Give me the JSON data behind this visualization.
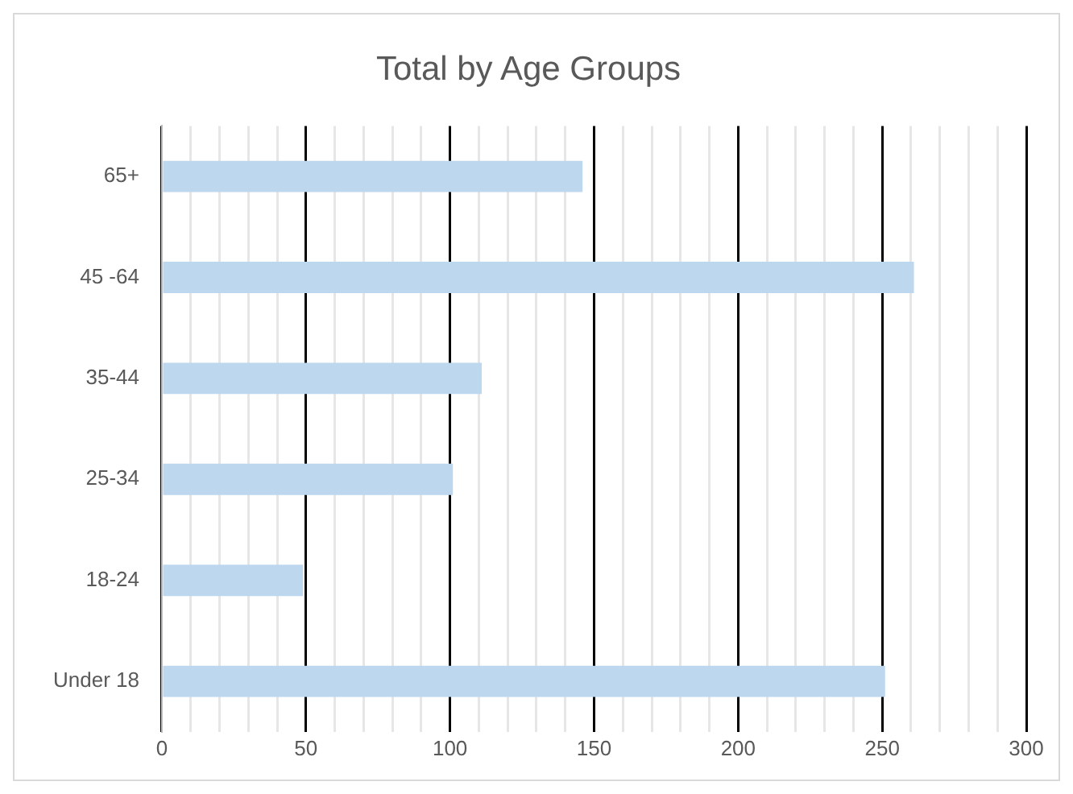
{
  "chart_data": {
    "type": "bar",
    "orientation": "horizontal",
    "title": "Total by Age Groups",
    "categories": [
      "65+",
      "45 -64",
      "35-44",
      "25-34",
      "18-24",
      "Under 18"
    ],
    "values": [
      146,
      261,
      111,
      101,
      49,
      251
    ],
    "color": "#bdd7ee",
    "xlim": [
      0,
      300
    ],
    "xticks": [
      0,
      {
        "value": 10,
        "label": null
      },
      {
        "value": 20,
        "label": null
      },
      {
        "value": 30,
        "label": null
      },
      {
        "value": 40,
        "label": null
      },
      50,
      {
        "value": 60,
        "label": null
      },
      {
        "value": 70,
        "label": null
      },
      {
        "value": 80,
        "label": null
      },
      {
        "value": 90,
        "label": null
      },
      100,
      {
        "value": 110,
        "label": null
      },
      {
        "value": 120,
        "label": null
      },
      {
        "value": 130,
        "label": null
      },
      {
        "value": 140,
        "label": null
      },
      150,
      {
        "value": 160,
        "label": null
      },
      {
        "value": 170,
        "label": null
      },
      {
        "value": 180,
        "label": null
      },
      {
        "value": 190,
        "label": null
      },
      200,
      {
        "value": 210,
        "label": null
      },
      {
        "value": 220,
        "label": null
      },
      {
        "value": 230,
        "label": null
      },
      {
        "value": 240,
        "label": null
      },
      250,
      {
        "value": 260,
        "label": null
      },
      {
        "value": 270,
        "label": null
      },
      {
        "value": 280,
        "label": null
      },
      {
        "value": 290,
        "label": null
      },
      300
    ],
    "grid": "x",
    "legend": false
  }
}
